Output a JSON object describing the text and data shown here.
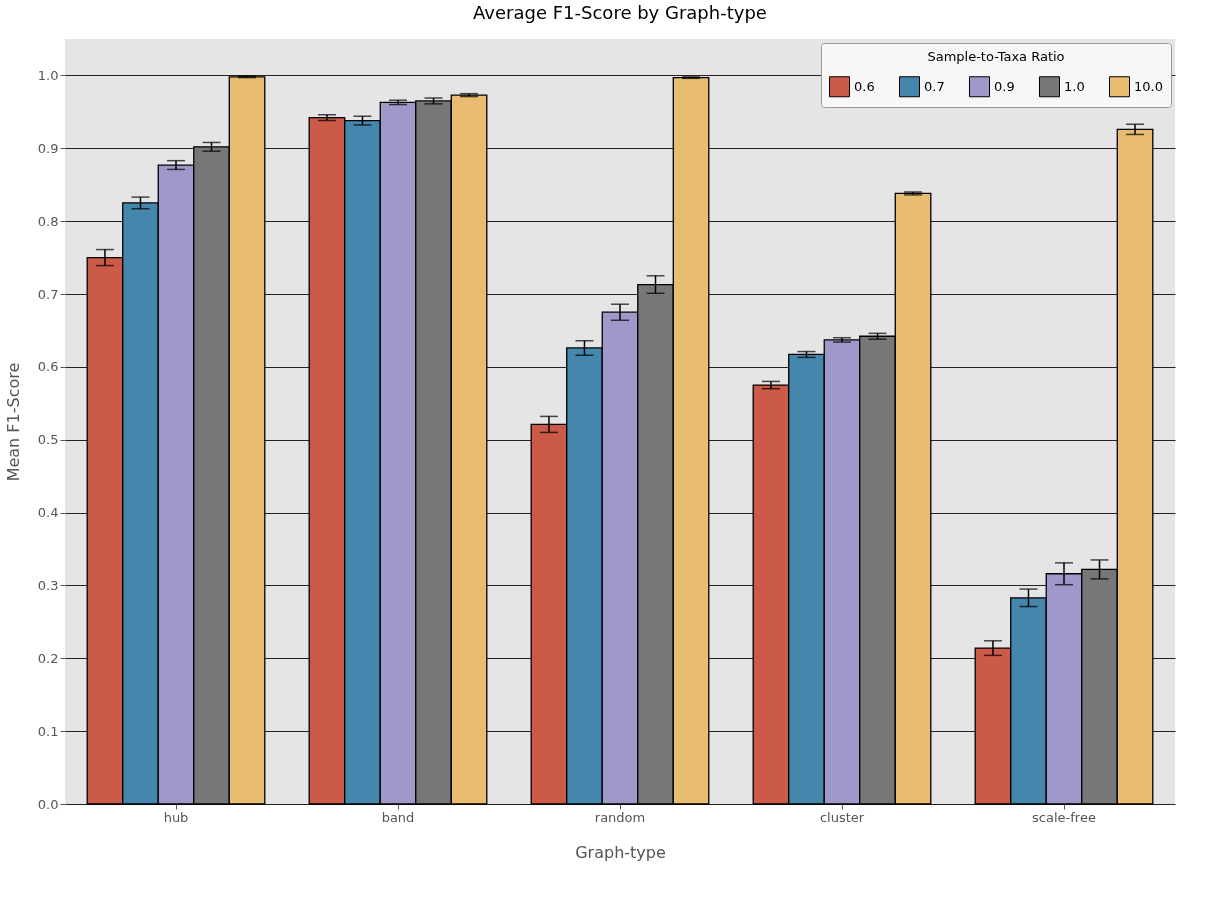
{
  "chart_data": {
    "type": "bar",
    "title": "Average F1-Score by Graph-type",
    "xlabel": "Graph-type",
    "ylabel": "Mean F1-Score",
    "legend_title": "Sample-to-Taxa Ratio",
    "categories": [
      "hub",
      "band",
      "random",
      "cluster",
      "scale-free"
    ],
    "series": [
      {
        "name": "0.6",
        "color": "#cc5a49",
        "values": [
          0.75,
          0.942,
          0.521,
          0.575,
          0.214
        ],
        "errors": [
          0.011,
          0.004,
          0.011,
          0.005,
          0.01
        ]
      },
      {
        "name": "0.7",
        "color": "#4586ac",
        "values": [
          0.825,
          0.938,
          0.626,
          0.617,
          0.283
        ],
        "errors": [
          0.008,
          0.006,
          0.01,
          0.004,
          0.012
        ]
      },
      {
        "name": "0.9",
        "color": "#9f99cb",
        "values": [
          0.877,
          0.963,
          0.675,
          0.637,
          0.316
        ],
        "errors": [
          0.006,
          0.003,
          0.011,
          0.003,
          0.015
        ]
      },
      {
        "name": "1.0",
        "color": "#777777",
        "values": [
          0.902,
          0.965,
          0.713,
          0.642,
          0.322
        ],
        "errors": [
          0.006,
          0.004,
          0.012,
          0.004,
          0.013
        ]
      },
      {
        "name": "10.0",
        "color": "#e8bc71",
        "values": [
          0.998,
          0.973,
          0.997,
          0.838,
          0.926
        ],
        "errors": [
          0.001,
          0.002,
          0.001,
          0.002,
          0.007
        ]
      }
    ],
    "ylim": [
      0,
      1.05
    ],
    "yticks": [
      {
        "value": 0,
        "label": "0.0"
      },
      0.1,
      0.2,
      0.3,
      0.4,
      0.5,
      0.6,
      0.7,
      0.8,
      0.9,
      {
        "value": 1,
        "label": "1.0"
      }
    ],
    "grid": "y",
    "legend": "top right"
  }
}
